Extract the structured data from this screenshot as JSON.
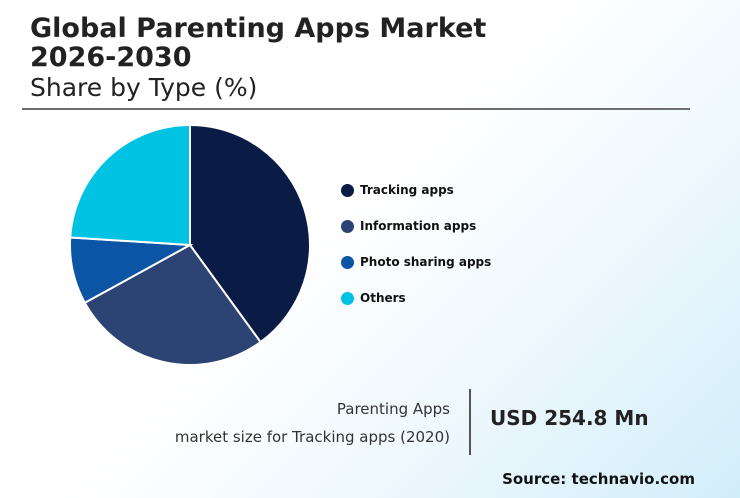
{
  "title_line1": "Global Parenting Apps Market",
  "title_line2": "2026-2030",
  "subtitle": "Share by Type (%)",
  "chart_data": {
    "type": "pie",
    "title": "Global Parenting Apps Market 2026-2030",
    "subtitle": "Share by Type (%)",
    "labels": [
      "Tracking apps",
      "Information apps",
      "Photo sharing apps",
      "Others"
    ],
    "values": [
      40,
      27,
      9,
      24
    ],
    "colors": [
      "#0a1c45",
      "#2c4373",
      "#0b55a4",
      "#00c2e3"
    ],
    "legend": "right"
  },
  "stat": {
    "caption_line1": "Parenting Apps",
    "caption_line2": "market size for Tracking apps (2020)",
    "value": "USD 254.8 Mn"
  },
  "source": "Source: technavio.com"
}
